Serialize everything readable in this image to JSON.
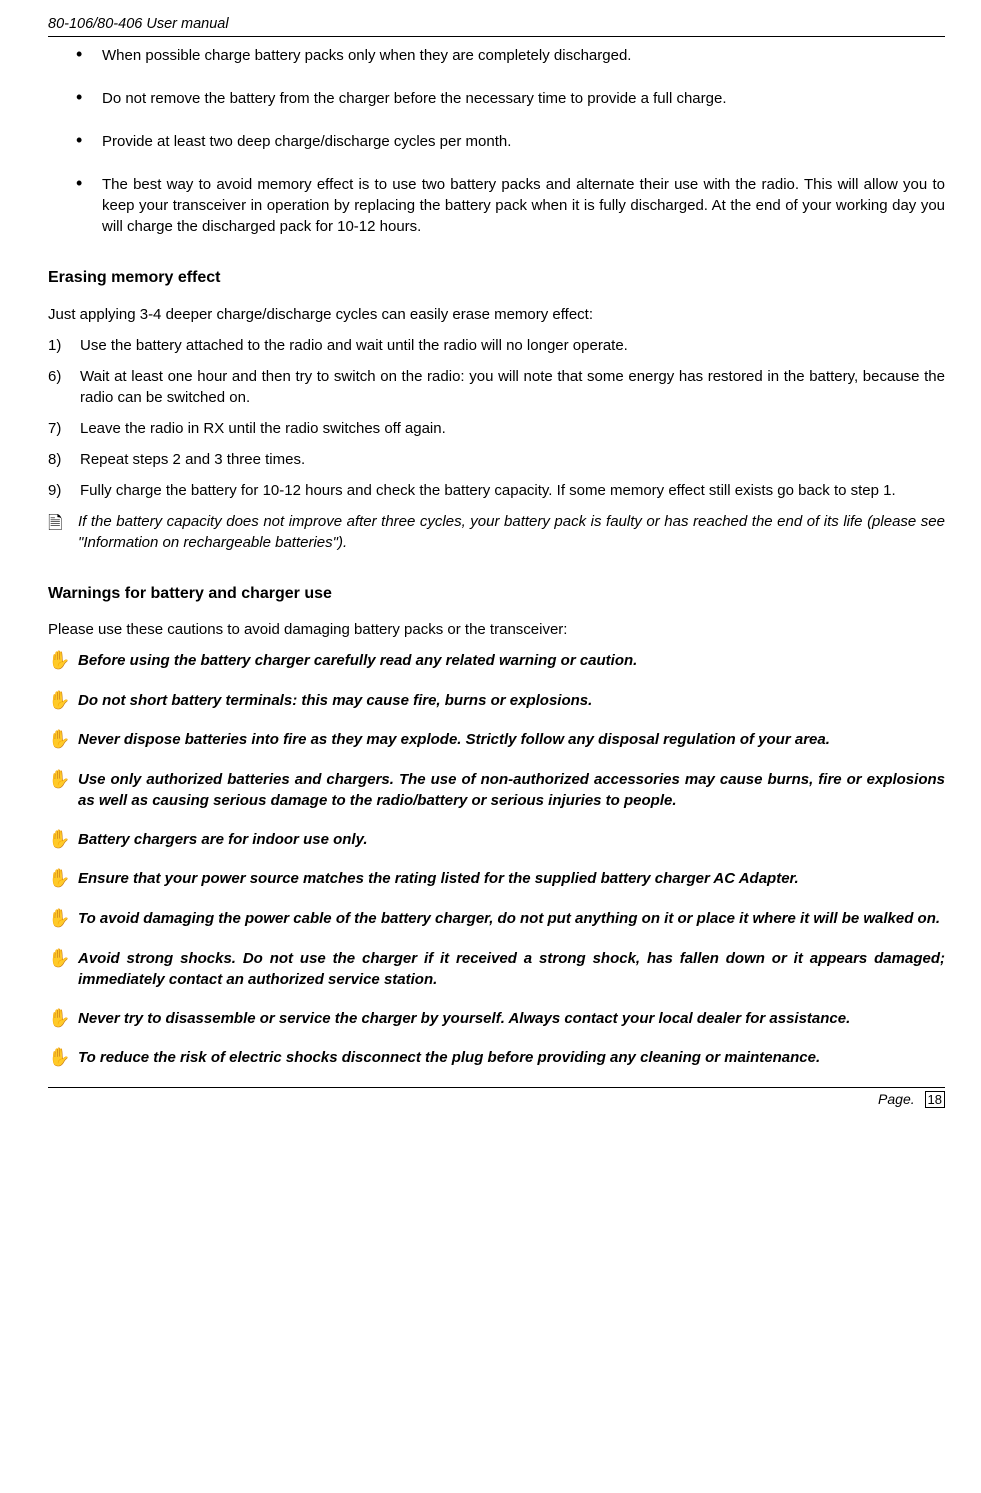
{
  "header": "80-106/80-406 User manual",
  "bullets": [
    "When possible charge battery packs only when they are completely discharged.",
    "Do not remove the battery from the charger before the necessary time to provide a full charge.",
    "Provide at least two deep charge/discharge cycles per month.",
    "The best way to avoid memory effect is to use two battery packs and alternate their use with the radio. This will allow you to keep your transceiver in operation by replacing the battery pack when it is fully discharged. At the end of your working day you will charge the discharged pack for 10-12 hours."
  ],
  "section_erasing_title": "Erasing memory effect",
  "erasing_intro": "Just applying 3-4 deeper charge/discharge cycles can easily erase memory effect:",
  "steps": [
    {
      "num": "1)",
      "text": "Use the battery attached to the radio and wait until the radio will no longer operate."
    },
    {
      "num": "6)",
      "text": "Wait at least one hour and then try to switch on the radio: you will note that some energy has restored in the battery, because the radio can be switched on."
    },
    {
      "num": "7)",
      "text": "Leave the radio in RX until the radio switches off again."
    },
    {
      "num": "8)",
      "text": "Repeat steps 2 and 3 three times."
    },
    {
      "num": "9)",
      "text": "Fully charge the battery for 10-12 hours and check the battery capacity. If some memory effect still exists go back to step 1."
    }
  ],
  "note_icon": "🗎",
  "note_text": " If the battery capacity does not improve after three cycles, your battery pack is faulty or has reached the end of its life (please see \"Information on rechargeable batteries\").",
  "section_warnings_title": "Warnings for battery and charger use",
  "warnings_intro": "Please use these cautions to avoid damaging battery packs or the transceiver:",
  "hand_icon": "✋",
  "warnings": [
    "Before using the battery charger carefully read any related warning or caution.",
    "Do not short battery terminals: this may cause fire, burns or explosions.",
    "Never dispose batteries into fire as they may explode. Strictly follow any disposal regulation of your area.",
    "Use only authorized batteries and chargers. The use of non-authorized accessories may cause burns, fire or explosions as well as causing serious damage to the radio/battery or serious injuries to people.",
    "Battery chargers are for indoor use only.",
    "Ensure that your power source matches the rating listed for the supplied battery charger AC Adapter.",
    "To avoid damaging the power cable of the battery charger, do not put anything on it or place it where it will be walked on.",
    "Avoid strong shocks. Do not use the charger if it received a strong shock, has fallen down or it appears damaged; immediately contact an authorized service station.",
    "Never try to disassemble or service the charger by yourself. Always contact your local dealer for assistance.",
    "To reduce the risk of electric shocks disconnect the plug before providing any cleaning or maintenance."
  ],
  "footer_label": "Page.",
  "footer_page": "18"
}
